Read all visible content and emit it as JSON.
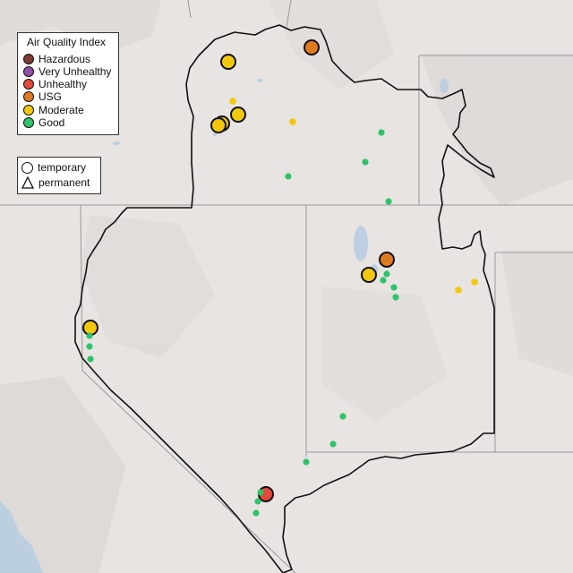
{
  "legend": {
    "title": "Air Quality Index",
    "categories": [
      {
        "label": "Hazardous",
        "color": "#7e3b36"
      },
      {
        "label": "Very Unhealthy",
        "color": "#8f4fa6"
      },
      {
        "label": "Unhealthy",
        "color": "#e04a3b"
      },
      {
        "label": "USG",
        "color": "#e07a22"
      },
      {
        "label": "Moderate",
        "color": "#f2c80f"
      },
      {
        "label": "Good",
        "color": "#2ec36a"
      }
    ]
  },
  "sensor_legend": {
    "temporary": "temporary",
    "permanent": "permanent"
  },
  "monitors": [
    {
      "category": "USG",
      "type": "temporary"
    },
    {
      "category": "Moderate",
      "type": "temporary"
    },
    {
      "category": "Moderate",
      "type": "temporary"
    },
    {
      "category": "Moderate",
      "type": "temporary"
    },
    {
      "category": "Moderate",
      "type": "temporary"
    },
    {
      "category": "Moderate",
      "type": "permanent"
    },
    {
      "category": "Moderate",
      "type": "permanent"
    },
    {
      "category": "Good",
      "type": "permanent"
    },
    {
      "category": "Good",
      "type": "permanent"
    },
    {
      "category": "Good",
      "type": "permanent"
    },
    {
      "category": "Good",
      "type": "permanent"
    },
    {
      "category": "USG",
      "type": "temporary"
    },
    {
      "category": "Moderate",
      "type": "temporary"
    },
    {
      "category": "Good",
      "type": "permanent"
    },
    {
      "category": "Good",
      "type": "permanent"
    },
    {
      "category": "Good",
      "type": "permanent"
    },
    {
      "category": "Good",
      "type": "permanent"
    },
    {
      "category": "Moderate",
      "type": "permanent"
    },
    {
      "category": "Moderate",
      "type": "permanent"
    },
    {
      "category": "Moderate",
      "type": "temporary"
    },
    {
      "category": "Good",
      "type": "permanent"
    },
    {
      "category": "Good",
      "type": "permanent"
    },
    {
      "category": "Good",
      "type": "permanent"
    },
    {
      "category": "Good",
      "type": "permanent"
    },
    {
      "category": "Unhealthy",
      "type": "temporary"
    },
    {
      "category": "Good",
      "type": "permanent"
    },
    {
      "category": "Good",
      "type": "permanent"
    },
    {
      "category": "Good",
      "type": "permanent"
    }
  ]
}
